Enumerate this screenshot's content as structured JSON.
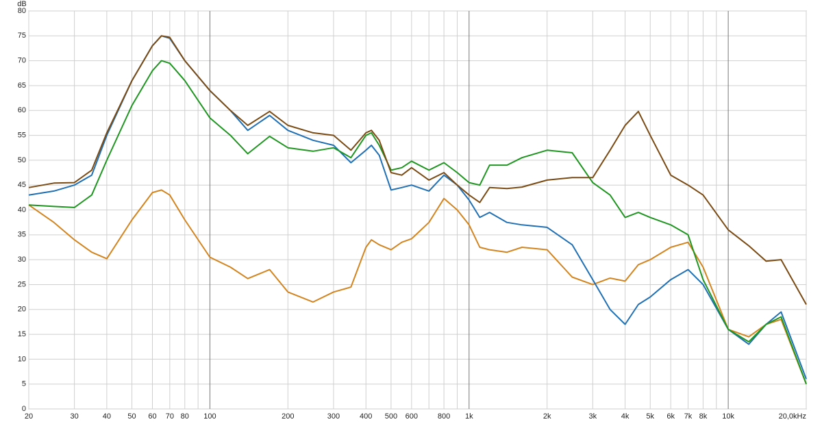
{
  "chart_data": {
    "type": "line",
    "y_label": "dB",
    "xscale": "log",
    "grid": true,
    "xlim": [
      20,
      20000
    ],
    "ylim": [
      0,
      80
    ],
    "yticks": [
      0,
      5,
      10,
      15,
      20,
      25,
      30,
      35,
      40,
      45,
      50,
      55,
      60,
      65,
      70,
      75,
      80
    ],
    "xticks": [
      20,
      30,
      40,
      50,
      60,
      70,
      80,
      100,
      200,
      300,
      400,
      500,
      600,
      800,
      {
        "value": 1000,
        "label": "1k"
      },
      {
        "value": 2000,
        "label": "2k"
      },
      {
        "value": 3000,
        "label": "3k"
      },
      {
        "value": 4000,
        "label": "4k"
      },
      {
        "value": 5000,
        "label": "5k"
      },
      {
        "value": 6000,
        "label": "6k"
      },
      {
        "value": 7000,
        "label": "7k"
      },
      {
        "value": 8000,
        "label": "8k"
      },
      {
        "value": 10000,
        "label": "10k"
      },
      {
        "value": 20000,
        "label": "20,0kHz"
      }
    ],
    "xminor": [
      90,
      700,
      900,
      9000
    ],
    "x": [
      20,
      25,
      30,
      35,
      40,
      50,
      60,
      65,
      70,
      80,
      100,
      120,
      140,
      170,
      200,
      250,
      300,
      350,
      400,
      420,
      450,
      500,
      550,
      600,
      700,
      800,
      900,
      1000,
      1100,
      1200,
      1400,
      1600,
      2000,
      2500,
      3000,
      3500,
      4000,
      4500,
      5000,
      6000,
      7000,
      8000,
      10000,
      12000,
      14000,
      16000,
      20000
    ],
    "series": [
      {
        "color": "#d4841e",
        "values": [
          41,
          37.5,
          34,
          31.5,
          30.2,
          38,
          43.5,
          44,
          43,
          38,
          30.5,
          28.5,
          26.2,
          28,
          23.5,
          21.5,
          23.5,
          24.5,
          32.5,
          34,
          33,
          32,
          33.5,
          34.2,
          37.5,
          42.3,
          40,
          37,
          32.5,
          32,
          31.5,
          32.5,
          32,
          26.5,
          25,
          26.3,
          25.7,
          29,
          30,
          32.5,
          33.5,
          28.5,
          16,
          14.5,
          17,
          18,
          5
        ]
      },
      {
        "color": "#1f6fb5",
        "values": [
          43,
          43.8,
          45,
          47,
          55,
          66,
          73,
          75,
          74.5,
          70,
          64,
          60,
          56,
          59,
          56,
          54,
          53,
          49.5,
          52,
          53,
          51,
          44,
          44.5,
          45,
          43.8,
          47,
          45,
          42,
          38.5,
          39.5,
          37.5,
          37,
          36.5,
          33,
          26,
          20,
          17,
          21,
          22.5,
          26,
          28,
          25,
          16,
          13,
          17,
          19.5,
          6
        ]
      },
      {
        "color": "#1e9620",
        "values": [
          41,
          40.7,
          40.5,
          43,
          50,
          61,
          68,
          70,
          69.5,
          66,
          58.5,
          55,
          51.3,
          54.8,
          52.5,
          51.8,
          52.5,
          50.5,
          55,
          55.5,
          53,
          48,
          48.5,
          49.8,
          48,
          49.5,
          47.5,
          45.5,
          45,
          49,
          49,
          50.5,
          52,
          51.5,
          45.5,
          43,
          38.5,
          39.5,
          38.5,
          37,
          35,
          26,
          16,
          13.5,
          17,
          18.5,
          5
        ]
      },
      {
        "color": "#7b4a13",
        "values": [
          44.5,
          45.4,
          45.5,
          48,
          55.5,
          66,
          73,
          75,
          74.7,
          70,
          64,
          60,
          57,
          59.8,
          57,
          55.5,
          55,
          52,
          55.5,
          56,
          54,
          47.5,
          47,
          48.5,
          46,
          47.5,
          45,
          43,
          41.5,
          44.5,
          44.3,
          44.6,
          46,
          46.5,
          46.5,
          52,
          57,
          59.8,
          55,
          47,
          45,
          43,
          36,
          32.8,
          29.7,
          30,
          21
        ]
      }
    ]
  }
}
